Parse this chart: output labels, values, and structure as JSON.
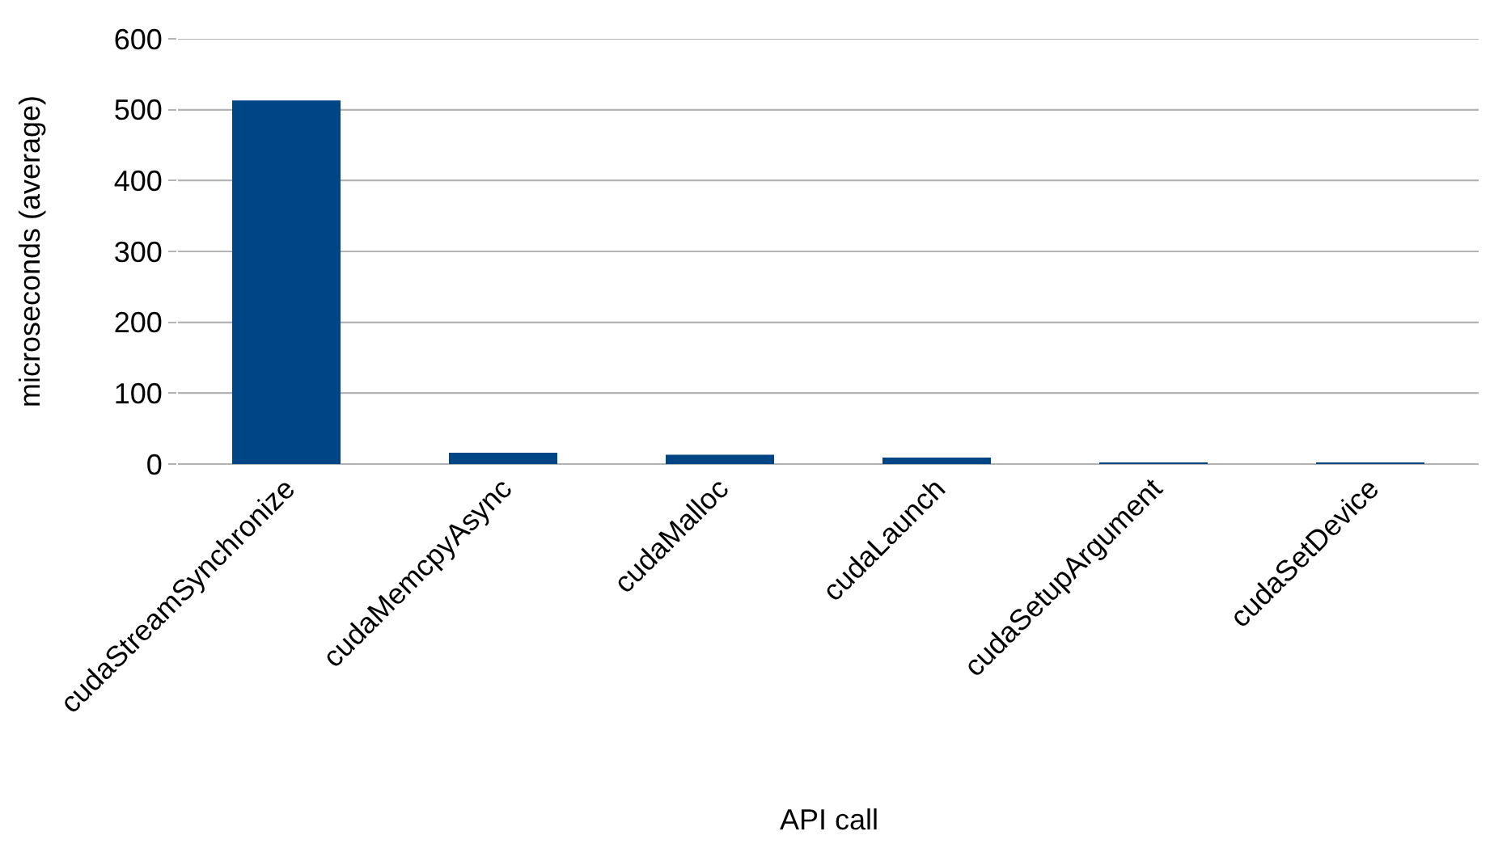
{
  "chart_data": {
    "type": "bar",
    "xlabel": "API call",
    "ylabel": "microseconds (average)",
    "categories": [
      "cudaStreamSynchronize",
      "cudaMemcpyAsync",
      "cudaMalloc",
      "cudaLaunch",
      "cudaSetupArgument",
      "cudaSetDevice"
    ],
    "values": [
      513,
      16,
      13,
      9,
      1,
      1
    ],
    "color": "#004586",
    "ylim": [
      0,
      600
    ],
    "yticks": [
      0,
      100,
      200,
      300,
      400,
      500,
      600
    ],
    "grid": "y"
  }
}
